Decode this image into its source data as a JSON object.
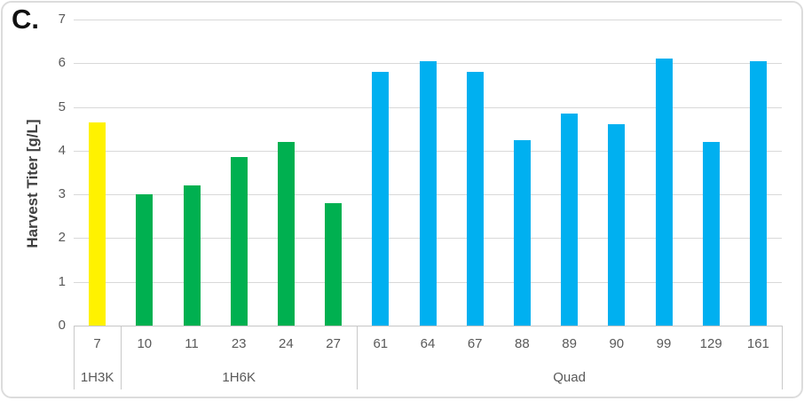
{
  "panel_letter": "C.",
  "colors": {
    "group_1H3K": "#FFF200",
    "group_1H6K": "#00B050",
    "group_Quad": "#00B0F0",
    "axis_text": "#595959",
    "gridline": "#D9D9D9",
    "frame_border": "#DCDCDC"
  },
  "chart_data": {
    "type": "bar",
    "title": "",
    "xlabel": "",
    "ylabel": "Harvest Titer [g/L]",
    "ylim": [
      0,
      7
    ],
    "yticks": [
      0,
      1,
      2,
      3,
      4,
      5,
      6,
      7
    ],
    "grid": "horizontal",
    "legend_position": "none",
    "categories": [
      "7",
      "10",
      "11",
      "23",
      "24",
      "27",
      "61",
      "64",
      "67",
      "88",
      "89",
      "90",
      "99",
      "129",
      "161"
    ],
    "values": [
      4.65,
      3.0,
      3.2,
      3.85,
      4.2,
      2.8,
      5.8,
      6.05,
      5.8,
      4.25,
      4.85,
      4.6,
      6.1,
      4.2,
      6.05
    ],
    "groups": [
      {
        "label": "1H3K",
        "categories": [
          "7"
        ],
        "color": "#FFF200"
      },
      {
        "label": "1H6K",
        "categories": [
          "10",
          "11",
          "23",
          "24",
          "27"
        ],
        "color": "#00B050"
      },
      {
        "label": "Quad",
        "categories": [
          "61",
          "64",
          "67",
          "88",
          "89",
          "90",
          "99",
          "129",
          "161"
        ],
        "color": "#00B0F0"
      }
    ]
  }
}
